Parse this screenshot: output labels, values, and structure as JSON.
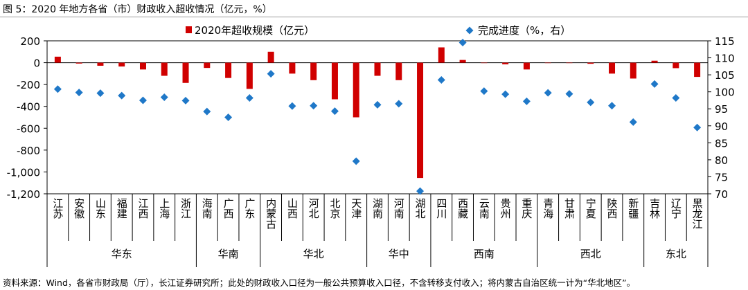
{
  "figure": {
    "title": "图 5：2020 年地方各省（市）财政收入超收情况（亿元，%）",
    "source": "资料来源：Wind，各省市财政局（厅），长江证券研究所；此处的财政收入口径为一般公共预算收入口径，不含转移支付收入；将内蒙古自治区统一计为“华北地区”。"
  },
  "chart_data": {
    "type": "bar",
    "categories": [
      "江苏",
      "安徽",
      "山东",
      "福建",
      "江西",
      "上海",
      "浙江",
      "海南",
      "广西",
      "广东",
      "内蒙古",
      "山西",
      "河北",
      "北京",
      "天津",
      "湖南",
      "河南",
      "湖北",
      "四川",
      "西藏",
      "云南",
      "贵州",
      "重庆",
      "青海",
      "甘肃",
      "宁夏",
      "陕西",
      "新疆",
      "吉林",
      "辽宁",
      "黑龙江"
    ],
    "groups": [
      {
        "name": "华东",
        "count": 7
      },
      {
        "name": "华南",
        "count": 3
      },
      {
        "name": "华北",
        "count": 5
      },
      {
        "name": "华中",
        "count": 3
      },
      {
        "name": "西南",
        "count": 5
      },
      {
        "name": "西北",
        "count": 5
      },
      {
        "name": "东北",
        "count": 3
      }
    ],
    "series": [
      {
        "name": "2020年超收规模（亿元）",
        "type": "bar",
        "axis": "left",
        "color": "#d00000",
        "values": [
          55,
          -8,
          -28,
          -35,
          -62,
          -120,
          -185,
          -48,
          -140,
          -240,
          100,
          -100,
          -160,
          -335,
          -500,
          -120,
          -160,
          -1055,
          140,
          25,
          -3,
          -15,
          -62,
          0,
          -3,
          -10,
          -100,
          -145,
          18,
          -50,
          -130
        ]
      },
      {
        "name": "完成进度（%，右）",
        "type": "scatter",
        "axis": "right",
        "color": "#1f78c8",
        "values": [
          100.8,
          99.8,
          99.6,
          98.9,
          97.5,
          98.4,
          97.4,
          94.2,
          92.5,
          98.2,
          105.3,
          95.8,
          95.9,
          94.3,
          79.6,
          96.2,
          96.5,
          70.8,
          103.5,
          114.5,
          100.2,
          99.3,
          97.2,
          99.7,
          99.4,
          96.9,
          95.9,
          91.1,
          102.3,
          98.2,
          89.5
        ]
      }
    ],
    "left_axis": {
      "min": -1200,
      "max": 200,
      "ticks": [
        200,
        0,
        -200,
        -400,
        -600,
        -800,
        -1000,
        -1200
      ],
      "tick_labels": [
        "200",
        "0",
        "-200",
        "-400",
        "-600",
        "-800",
        "-1,000",
        "-1,200"
      ]
    },
    "right_axis": {
      "min": 70,
      "max": 115,
      "ticks": [
        115,
        110,
        105,
        100,
        95,
        90,
        85,
        80,
        75,
        70
      ],
      "tick_labels": [
        "115",
        "110",
        "105",
        "100",
        "95",
        "90",
        "85",
        "80",
        "75",
        "70"
      ]
    },
    "legend": {
      "position": "top-center"
    }
  }
}
